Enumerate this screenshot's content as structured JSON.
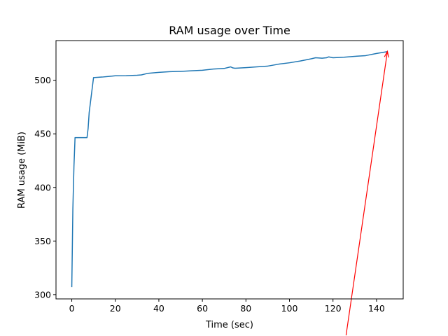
{
  "chart_data": {
    "type": "line",
    "title": "RAM usage over Time",
    "xlabel": "Time (sec)",
    "ylabel": "RAM usage (MiB)",
    "xlim": [
      -7.25,
      152.25
    ],
    "ylim": [
      296.0,
      537.0
    ],
    "xticks": [
      0,
      20,
      40,
      60,
      80,
      100,
      120,
      140
    ],
    "yticks": [
      300,
      350,
      400,
      450,
      500
    ],
    "grid": false,
    "legend": "none",
    "colors": {
      "line": "#1f77b4",
      "arrow": "#ff0000"
    },
    "series": [
      {
        "x": [
          0,
          0.5,
          1,
          1.5,
          7,
          7.5,
          8,
          10,
          14,
          18,
          20,
          25,
          30,
          32,
          35,
          40,
          45,
          50,
          55,
          60,
          65,
          70,
          73,
          74,
          75,
          80,
          85,
          90,
          95,
          100,
          105,
          110,
          112,
          115,
          117,
          118,
          120,
          125,
          130,
          135,
          140,
          145
        ],
        "y": [
          307,
          380,
          420,
          446.5,
          446.5,
          455,
          470,
          502.5,
          503,
          503.8,
          504.2,
          504.3,
          504.7,
          505,
          506.5,
          507.4,
          508,
          508.3,
          508.8,
          509.3,
          510.5,
          511,
          512.5,
          511.5,
          511.2,
          511.8,
          512.5,
          513.2,
          515,
          516.3,
          518,
          520,
          521,
          520.6,
          521,
          521.8,
          521,
          521.5,
          522.3,
          523,
          525,
          526.7
        ]
      }
    ],
    "annotations": [
      {
        "type": "arrow",
        "from": [
          126,
          262
        ],
        "to": [
          145,
          527
        ]
      }
    ]
  }
}
